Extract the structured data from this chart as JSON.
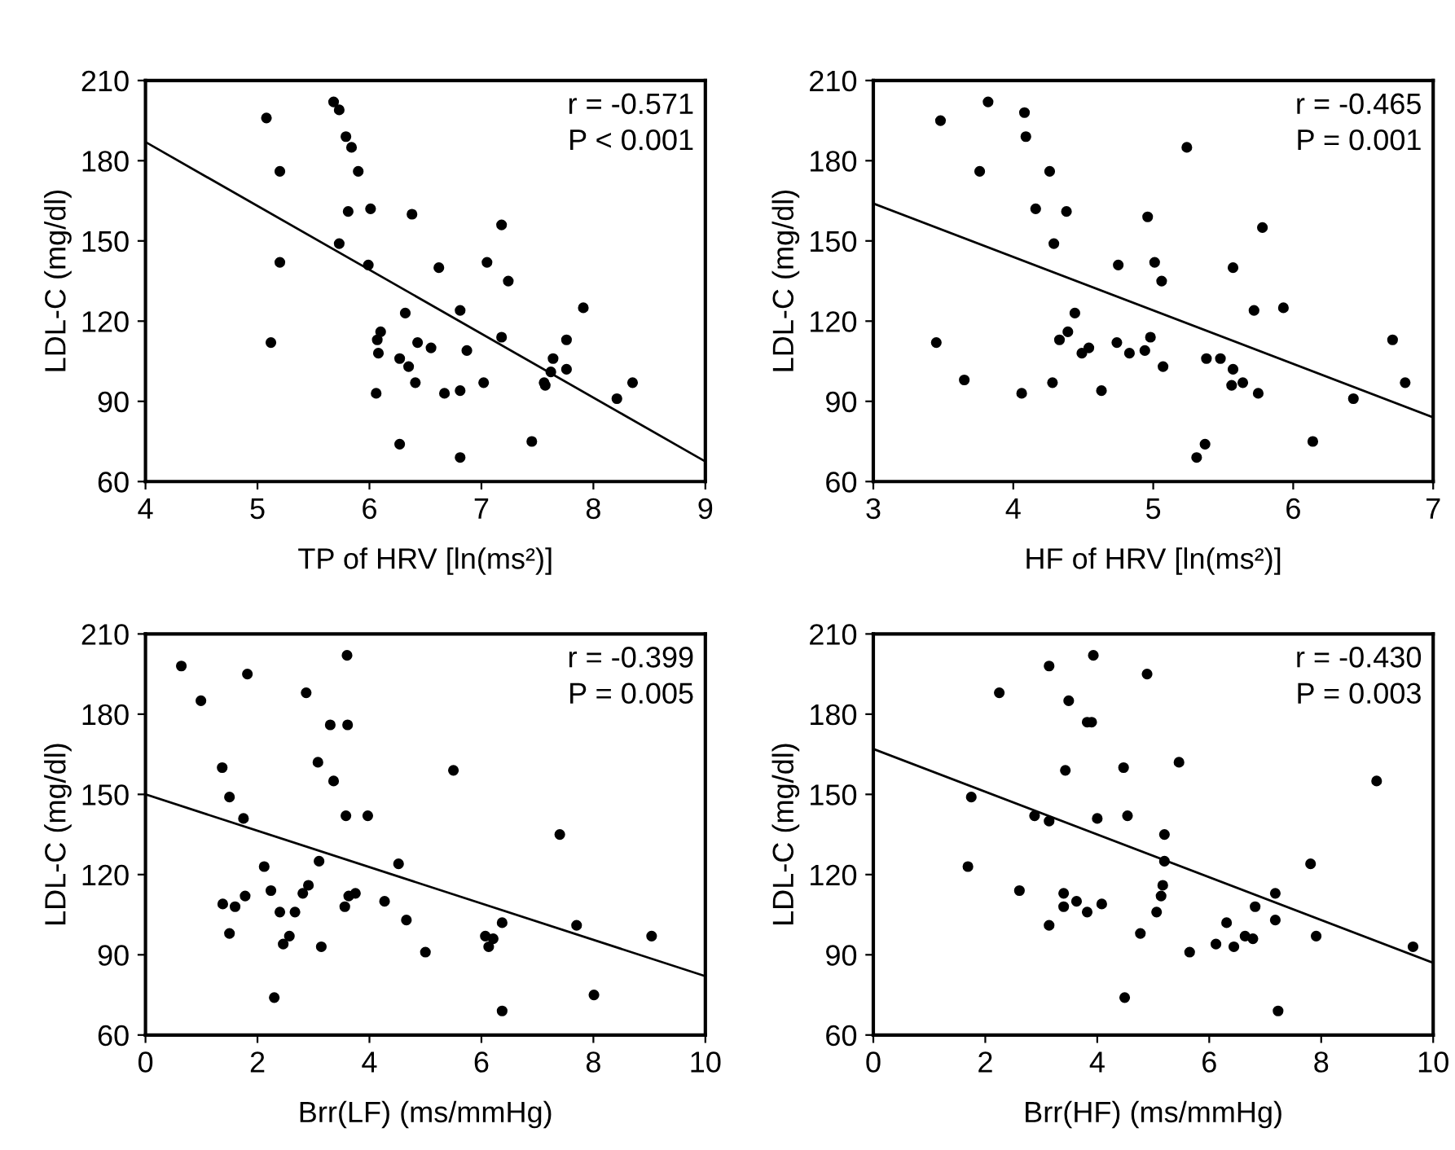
{
  "chart_data": [
    {
      "type": "scatter",
      "xlabel": "TP of HRV [ln(ms²)]",
      "ylabel": "LDL-C (mg/dl)",
      "xlim": [
        4,
        9
      ],
      "ylim": [
        60,
        210
      ],
      "xticks": [
        4,
        5,
        6,
        7,
        8,
        9
      ],
      "yticks": [
        60,
        90,
        120,
        150,
        180,
        210
      ],
      "marker": "circle",
      "grid": false,
      "annotations": [
        "r = -0.571",
        "P < 0.001"
      ],
      "series": [
        {
          "color": "#000000",
          "x": [
            5.08,
            5.68,
            5.73,
            5.79,
            5.84,
            5.9,
            5.2,
            5.81,
            6.01,
            6.38,
            7.18,
            5.73,
            5.2,
            5.99,
            6.62,
            7.05,
            7.24,
            5.12,
            6.32,
            6.81,
            7.91,
            6.1,
            6.07,
            6.08,
            6.43,
            6.55,
            6.87,
            7.18,
            7.76,
            6.27,
            6.35,
            6.41,
            6.06,
            6.67,
            6.81,
            7.02,
            7.56,
            7.57,
            7.64,
            7.62,
            7.76,
            8.21,
            8.35,
            6.27,
            7.45,
            6.81
          ],
          "values": [
            196,
            202,
            199,
            189,
            185,
            176,
            176,
            161,
            162,
            160,
            156,
            149,
            142,
            141,
            140,
            142,
            135,
            112,
            123,
            124,
            125,
            116,
            113,
            108,
            112,
            110,
            109,
            114,
            113,
            106,
            103,
            97,
            93,
            93,
            94,
            97,
            97,
            96,
            106,
            101,
            102,
            91,
            97,
            74,
            75,
            69
          ]
        },
        {
          "type": "line",
          "marker": "none",
          "color": "#000000",
          "x": [
            4,
            9
          ],
          "values": [
            187,
            67.5
          ]
        }
      ]
    },
    {
      "type": "scatter",
      "xlabel": "HF of HRV [ln(ms²)]",
      "ylabel": "LDL-C (mg/dl)",
      "xlim": [
        3,
        7
      ],
      "ylim": [
        60,
        210
      ],
      "xticks": [
        3,
        4,
        5,
        6,
        7
      ],
      "yticks": [
        60,
        90,
        120,
        150,
        180,
        210
      ],
      "marker": "circle",
      "grid": false,
      "annotations": [
        "r = -0.465",
        "P = 0.001"
      ],
      "series": [
        {
          "color": "#000000",
          "x": [
            3.48,
            3.82,
            4.08,
            4.09,
            5.24,
            3.76,
            4.26,
            4.16,
            4.38,
            4.96,
            5.78,
            4.29,
            4.75,
            5.01,
            5.06,
            5.57,
            3.45,
            4.44,
            5.72,
            5.93,
            4.39,
            4.33,
            4.49,
            4.54,
            4.74,
            4.83,
            4.94,
            4.98,
            5.07,
            5.38,
            5.48,
            5.57,
            5.56,
            5.64,
            5.75,
            3.65,
            4.06,
            4.28,
            4.63,
            6.71,
            6.8,
            6.43,
            6.14,
            5.37,
            5.31
          ],
          "values": [
            195,
            202,
            198,
            189,
            185,
            176,
            176,
            162,
            161,
            159,
            155,
            149,
            141,
            142,
            135,
            140,
            112,
            123,
            124,
            125,
            116,
            113,
            108,
            110,
            112,
            108,
            109,
            114,
            103,
            106,
            106,
            102,
            96,
            97,
            93,
            98,
            93,
            97,
            94,
            113,
            97,
            91,
            75,
            74,
            69
          ]
        },
        {
          "type": "line",
          "marker": "none",
          "color": "#000000",
          "x": [
            3,
            7
          ],
          "values": [
            164,
            84
          ]
        }
      ]
    },
    {
      "type": "scatter",
      "xlabel": "Brr(LF) (ms/mmHg)",
      "ylabel": "LDL-C (mg/dl)",
      "xlim": [
        0,
        10
      ],
      "ylim": [
        60,
        210
      ],
      "xticks": [
        0,
        2,
        4,
        6,
        8,
        10
      ],
      "yticks": [
        60,
        90,
        120,
        150,
        180,
        210
      ],
      "marker": "circle",
      "grid": false,
      "annotations": [
        "r = -0.399",
        "P = 0.005"
      ],
      "series": [
        {
          "color": "#000000",
          "x": [
            0.64,
            1.82,
            0.99,
            3.6,
            2.87,
            3.3,
            3.61,
            1.37,
            3.08,
            3.36,
            5.5,
            1.5,
            1.75,
            3.58,
            3.97,
            7.4,
            2.12,
            3.1,
            4.52,
            2.24,
            1.38,
            1.6,
            1.78,
            2.4,
            2.67,
            2.81,
            2.91,
            3.56,
            3.63,
            3.75,
            4.27,
            4.66,
            1.5,
            2.46,
            2.57,
            3.14,
            5.0,
            6.37,
            6.07,
            6.21,
            6.13,
            7.7,
            9.04,
            2.3,
            8.01,
            6.37
          ],
          "values": [
            198,
            195,
            185,
            202,
            188,
            176,
            176,
            160,
            162,
            155,
            159,
            149,
            141,
            142,
            142,
            135,
            123,
            125,
            124,
            114,
            109,
            108,
            112,
            106,
            106,
            113,
            116,
            108,
            112,
            113,
            110,
            103,
            98,
            94,
            97,
            93,
            91,
            102,
            97,
            96,
            93,
            101,
            97,
            74,
            75,
            69
          ]
        },
        {
          "type": "line",
          "marker": "none",
          "color": "#000000",
          "x": [
            0,
            10
          ],
          "values": [
            150,
            82
          ]
        }
      ]
    },
    {
      "type": "scatter",
      "xlabel": "Brr(HF) (ms/mmHg)",
      "ylabel": "LDL-C (mg/dl)",
      "xlim": [
        0,
        10
      ],
      "ylim": [
        60,
        210
      ],
      "xticks": [
        0,
        2,
        4,
        6,
        8,
        10
      ],
      "yticks": [
        60,
        90,
        120,
        150,
        180,
        210
      ],
      "marker": "circle",
      "grid": false,
      "annotations": [
        "r = -0.430",
        "P = 0.003"
      ],
      "series": [
        {
          "color": "#000000",
          "x": [
            3.14,
            3.93,
            4.89,
            2.25,
            3.49,
            3.82,
            3.9,
            3.43,
            4.47,
            5.46,
            8.99,
            1.75,
            2.88,
            3.14,
            4.0,
            4.54,
            5.2,
            5.2,
            7.81,
            1.69,
            2.61,
            3.4,
            3.4,
            3.63,
            3.82,
            4.08,
            5.17,
            5.14,
            5.06,
            3.14,
            4.77,
            5.65,
            6.12,
            6.31,
            6.44,
            6.64,
            6.78,
            6.82,
            7.18,
            7.18,
            7.91,
            9.64,
            4.49,
            7.23
          ],
          "values": [
            198,
            202,
            195,
            188,
            185,
            177,
            177,
            159,
            160,
            162,
            155,
            149,
            142,
            140,
            141,
            142,
            135,
            125,
            124,
            123,
            114,
            113,
            108,
            110,
            106,
            109,
            116,
            112,
            106,
            101,
            98,
            91,
            94,
            102,
            93,
            97,
            96,
            108,
            113,
            103,
            97,
            93,
            74,
            69
          ]
        },
        {
          "type": "line",
          "marker": "none",
          "color": "#000000",
          "x": [
            0,
            10
          ],
          "values": [
            167,
            87
          ]
        }
      ]
    }
  ]
}
